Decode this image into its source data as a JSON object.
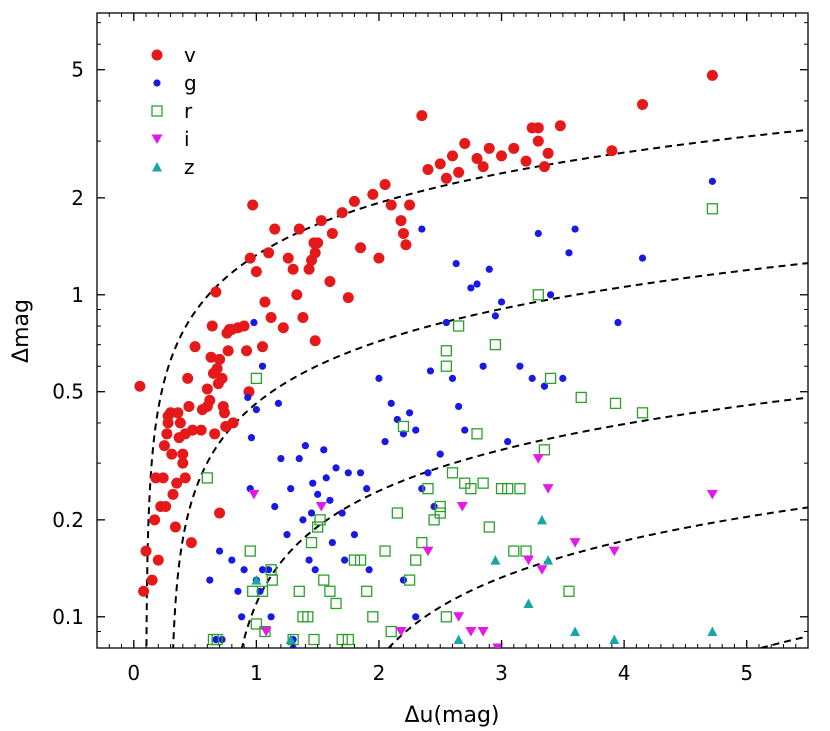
{
  "chart_data": {
    "type": "scatter",
    "xlabel": "Δu(mag)",
    "ylabel": "Δmag",
    "xlim": [
      -0.3,
      5.5
    ],
    "ylim": [
      0.08,
      7.5
    ],
    "yscale": "log",
    "xticks": [
      "0",
      "1",
      "2",
      "3",
      "4",
      "5"
    ],
    "yticks": [
      "0.1",
      "0.2",
      "0.5",
      "1",
      "2",
      "5"
    ],
    "legend_position": "top-left",
    "series": [
      {
        "name": "v",
        "marker": "circle",
        "color": "#e51919",
        "filled": true,
        "points": [
          [
            0.05,
            0.52
          ],
          [
            0.08,
            0.12
          ],
          [
            0.1,
            0.16
          ],
          [
            0.15,
            0.13
          ],
          [
            0.17,
            0.2
          ],
          [
            0.18,
            0.27
          ],
          [
            0.2,
            0.15
          ],
          [
            0.22,
            0.22
          ],
          [
            0.24,
            0.27
          ],
          [
            0.25,
            0.34
          ],
          [
            0.26,
            0.22
          ],
          [
            0.27,
            0.37
          ],
          [
            0.28,
            0.4
          ],
          [
            0.3,
            0.43
          ],
          [
            0.31,
            0.32
          ],
          [
            0.32,
            0.24
          ],
          [
            0.34,
            0.19
          ],
          [
            0.35,
            0.26
          ],
          [
            0.36,
            0.43
          ],
          [
            0.37,
            0.36
          ],
          [
            0.38,
            0.4
          ],
          [
            0.4,
            0.32
          ],
          [
            0.4,
            0.3
          ],
          [
            0.42,
            0.27
          ],
          [
            0.42,
            0.37
          ],
          [
            0.44,
            0.55
          ],
          [
            0.45,
            0.45
          ],
          [
            0.47,
            0.17
          ],
          [
            0.48,
            0.38
          ],
          [
            0.5,
            0.69
          ],
          [
            0.55,
            0.38
          ],
          [
            0.56,
            0.44
          ],
          [
            0.6,
            0.51
          ],
          [
            0.62,
            0.47
          ],
          [
            0.63,
            0.64
          ],
          [
            0.64,
            0.8
          ],
          [
            0.65,
            0.57
          ],
          [
            0.66,
            0.37
          ],
          [
            0.67,
            1.02
          ],
          [
            0.68,
            0.59
          ],
          [
            0.69,
            0.53
          ],
          [
            0.7,
            0.63
          ],
          [
            0.72,
            0.55
          ],
          [
            0.73,
            0.45
          ],
          [
            0.74,
            0.43
          ],
          [
            0.75,
            0.39
          ],
          [
            0.76,
            0.76
          ],
          [
            0.77,
            0.67
          ],
          [
            0.78,
            0.78
          ],
          [
            0.8,
            0.78
          ],
          [
            0.81,
            0.4
          ],
          [
            0.85,
            0.79
          ],
          [
            0.9,
            0.8
          ],
          [
            0.92,
            0.67
          ],
          [
            0.95,
            1.3
          ],
          [
            0.97,
            1.9
          ],
          [
            1.0,
            1.18
          ],
          [
            1.05,
            0.69
          ],
          [
            1.07,
            0.95
          ],
          [
            1.1,
            1.35
          ],
          [
            1.12,
            0.85
          ],
          [
            1.15,
            1.6
          ],
          [
            1.22,
            0.79
          ],
          [
            1.26,
            1.3
          ],
          [
            1.3,
            1.2
          ],
          [
            1.33,
            1.0
          ],
          [
            1.35,
            1.6
          ],
          [
            1.38,
            0.85
          ],
          [
            1.43,
            1.2
          ],
          [
            1.45,
            1.28
          ],
          [
            1.48,
            1.35
          ],
          [
            1.5,
            1.45
          ],
          [
            1.53,
            1.7
          ],
          [
            1.6,
            1.1
          ],
          [
            1.62,
            1.55
          ],
          [
            1.7,
            1.8
          ],
          [
            1.75,
            0.98
          ],
          [
            1.8,
            1.95
          ],
          [
            1.85,
            1.4
          ],
          [
            1.95,
            2.05
          ],
          [
            2.0,
            1.3
          ],
          [
            2.05,
            2.2
          ],
          [
            2.1,
            1.9
          ],
          [
            2.18,
            1.7
          ],
          [
            2.2,
            1.55
          ],
          [
            2.25,
            1.9
          ],
          [
            2.35,
            3.6
          ],
          [
            2.4,
            2.45
          ],
          [
            2.5,
            2.55
          ],
          [
            2.55,
            2.3
          ],
          [
            2.6,
            2.7
          ],
          [
            2.65,
            2.4
          ],
          [
            2.7,
            2.95
          ],
          [
            2.8,
            2.65
          ],
          [
            2.85,
            2.5
          ],
          [
            2.9,
            2.85
          ],
          [
            3.0,
            2.7
          ],
          [
            3.1,
            2.85
          ],
          [
            3.2,
            2.6
          ],
          [
            3.3,
            3.0
          ],
          [
            3.35,
            2.5
          ],
          [
            3.38,
            2.75
          ],
          [
            3.3,
            3.3
          ],
          [
            3.48,
            3.35
          ],
          [
            3.9,
            2.8
          ],
          [
            4.15,
            3.9
          ],
          [
            4.72,
            4.8
          ],
          [
            1.47,
            1.45
          ],
          [
            1.48,
            0.72
          ],
          [
            2.22,
            1.43
          ],
          [
            0.94,
            0.5
          ],
          [
            0.7,
            0.21
          ],
          [
            0.28,
            0.42
          ],
          [
            0.6,
            0.45
          ],
          [
            3.25,
            3.3
          ]
        ]
      },
      {
        "name": "g",
        "marker": "circle_small",
        "color": "#1919e5",
        "filled": true,
        "points": [
          [
            0.62,
            0.13
          ],
          [
            0.67,
            0.085
          ],
          [
            0.7,
            0.16
          ],
          [
            0.72,
            0.085
          ],
          [
            0.8,
            0.15
          ],
          [
            0.85,
            0.12
          ],
          [
            0.88,
            0.1
          ],
          [
            0.9,
            0.14
          ],
          [
            0.93,
            0.48
          ],
          [
            0.95,
            0.25
          ],
          [
            0.96,
            0.36
          ],
          [
            0.98,
            0.82
          ],
          [
            1.0,
            0.44
          ],
          [
            1.0,
            0.13
          ],
          [
            1.03,
            0.12
          ],
          [
            1.05,
            0.6
          ],
          [
            1.1,
            0.14
          ],
          [
            1.12,
            0.1
          ],
          [
            1.15,
            0.22
          ],
          [
            1.18,
            0.46
          ],
          [
            1.2,
            0.31
          ],
          [
            1.25,
            0.18
          ],
          [
            1.28,
            0.25
          ],
          [
            1.3,
            0.08
          ],
          [
            1.35,
            0.31
          ],
          [
            1.38,
            0.2
          ],
          [
            1.4,
            0.34
          ],
          [
            1.43,
            0.15
          ],
          [
            1.45,
            0.21
          ],
          [
            1.46,
            0.26
          ],
          [
            1.48,
            0.14
          ],
          [
            1.5,
            0.24
          ],
          [
            1.55,
            0.33
          ],
          [
            1.57,
            0.27
          ],
          [
            1.6,
            0.23
          ],
          [
            1.62,
            0.17
          ],
          [
            1.65,
            0.29
          ],
          [
            1.7,
            0.21
          ],
          [
            1.72,
            0.15
          ],
          [
            1.75,
            0.28
          ],
          [
            1.8,
            0.18
          ],
          [
            1.85,
            0.28
          ],
          [
            1.9,
            0.25
          ],
          [
            1.92,
            0.14
          ],
          [
            2.0,
            0.55
          ],
          [
            2.05,
            0.35
          ],
          [
            2.1,
            0.46
          ],
          [
            2.15,
            0.41
          ],
          [
            2.2,
            0.37
          ],
          [
            2.25,
            0.43
          ],
          [
            2.3,
            0.38
          ],
          [
            2.35,
            0.25
          ],
          [
            2.4,
            0.28
          ],
          [
            2.42,
            0.58
          ],
          [
            2.45,
            0.22
          ],
          [
            2.5,
            0.32
          ],
          [
            2.55,
            0.82
          ],
          [
            2.6,
            0.55
          ],
          [
            2.63,
            1.25
          ],
          [
            2.65,
            0.45
          ],
          [
            2.7,
            0.38
          ],
          [
            2.75,
            1.05
          ],
          [
            2.8,
            1.08
          ],
          [
            2.85,
            0.6
          ],
          [
            2.9,
            1.2
          ],
          [
            2.95,
            0.86
          ],
          [
            3.0,
            0.95
          ],
          [
            3.05,
            0.35
          ],
          [
            3.15,
            0.6
          ],
          [
            3.25,
            0.55
          ],
          [
            3.3,
            1.55
          ],
          [
            3.4,
            1.0
          ],
          [
            3.5,
            0.55
          ],
          [
            3.55,
            1.35
          ],
          [
            3.6,
            1.6
          ],
          [
            3.95,
            0.82
          ],
          [
            4.15,
            1.3
          ],
          [
            4.72,
            2.25
          ],
          [
            2.35,
            1.6
          ],
          [
            2.2,
            0.13
          ],
          [
            2.3,
            0.1
          ],
          [
            3.35,
            0.52
          ],
          [
            1.05,
            0.14
          ],
          [
            1.3,
            0.085
          ]
        ]
      },
      {
        "name": "r",
        "marker": "square_open",
        "color": "#2ca02c",
        "filled": false,
        "points": [
          [
            0.6,
            0.27
          ],
          [
            0.65,
            0.085
          ],
          [
            0.68,
            0.085
          ],
          [
            0.95,
            0.16
          ],
          [
            0.97,
            0.12
          ],
          [
            1.0,
            0.55
          ],
          [
            1.05,
            0.12
          ],
          [
            1.07,
            0.09
          ],
          [
            1.12,
            0.14
          ],
          [
            1.13,
            0.13
          ],
          [
            1.3,
            0.085
          ],
          [
            1.35,
            0.12
          ],
          [
            1.38,
            0.1
          ],
          [
            1.42,
            0.1
          ],
          [
            1.45,
            0.17
          ],
          [
            1.47,
            0.085
          ],
          [
            1.5,
            0.19
          ],
          [
            1.52,
            0.2
          ],
          [
            1.55,
            0.13
          ],
          [
            1.6,
            0.12
          ],
          [
            1.65,
            0.11
          ],
          [
            1.7,
            0.085
          ],
          [
            1.75,
            0.085
          ],
          [
            1.8,
            0.15
          ],
          [
            1.85,
            0.15
          ],
          [
            1.9,
            0.12
          ],
          [
            1.95,
            0.1
          ],
          [
            2.05,
            0.16
          ],
          [
            2.1,
            0.09
          ],
          [
            2.15,
            0.21
          ],
          [
            2.2,
            0.39
          ],
          [
            2.25,
            0.13
          ],
          [
            2.3,
            0.15
          ],
          [
            2.35,
            0.17
          ],
          [
            2.4,
            0.25
          ],
          [
            2.45,
            0.2
          ],
          [
            2.5,
            0.22
          ],
          [
            2.55,
            0.1
          ],
          [
            2.6,
            0.28
          ],
          [
            2.65,
            0.8
          ],
          [
            2.7,
            0.26
          ],
          [
            2.75,
            0.25
          ],
          [
            2.8,
            0.37
          ],
          [
            2.85,
            0.26
          ],
          [
            2.9,
            0.19
          ],
          [
            2.95,
            0.7
          ],
          [
            3.0,
            0.25
          ],
          [
            3.05,
            0.25
          ],
          [
            3.1,
            0.16
          ],
          [
            3.15,
            0.25
          ],
          [
            3.2,
            0.16
          ],
          [
            3.3,
            1.0
          ],
          [
            3.35,
            0.33
          ],
          [
            3.4,
            0.55
          ],
          [
            3.55,
            0.12
          ],
          [
            3.65,
            0.48
          ],
          [
            3.93,
            0.46
          ],
          [
            4.15,
            0.43
          ],
          [
            4.72,
            1.85
          ],
          [
            2.55,
            0.6
          ],
          [
            2.55,
            0.67
          ],
          [
            2.5,
            0.21
          ],
          [
            1.0,
            0.095
          ]
        ]
      },
      {
        "name": "i",
        "marker": "triangle_down",
        "color": "#e519e5",
        "filled": true,
        "points": [
          [
            0.98,
            0.24
          ],
          [
            1.08,
            0.09
          ],
          [
            1.53,
            0.22
          ],
          [
            2.18,
            0.09
          ],
          [
            2.4,
            0.16
          ],
          [
            2.65,
            0.1
          ],
          [
            2.68,
            0.22
          ],
          [
            2.75,
            0.09
          ],
          [
            2.85,
            0.09
          ],
          [
            2.97,
            0.08
          ],
          [
            3.22,
            0.15
          ],
          [
            3.3,
            0.31
          ],
          [
            3.33,
            0.14
          ],
          [
            3.38,
            0.25
          ],
          [
            3.6,
            0.17
          ],
          [
            3.92,
            0.16
          ],
          [
            4.72,
            0.24
          ]
        ]
      },
      {
        "name": "z",
        "marker": "triangle_up",
        "color": "#19a5a5",
        "filled": true,
        "points": [
          [
            1.0,
            0.13
          ],
          [
            1.28,
            0.085
          ],
          [
            2.65,
            0.085
          ],
          [
            2.95,
            0.15
          ],
          [
            3.22,
            0.11
          ],
          [
            3.33,
            0.2
          ],
          [
            3.38,
            0.15
          ],
          [
            3.6,
            0.09
          ],
          [
            3.92,
            0.085
          ],
          [
            4.72,
            0.09
          ]
        ]
      }
    ],
    "curves_note": "five dashed model curves",
    "curves": [
      {
        "a": 1.4,
        "x0": 0.1
      },
      {
        "a": 0.55,
        "x0": 0.3
      },
      {
        "a": 0.22,
        "x0": 0.75
      },
      {
        "a": 0.11,
        "x0": 1.55
      },
      {
        "a": 0.055,
        "x0": 3.0
      }
    ]
  }
}
